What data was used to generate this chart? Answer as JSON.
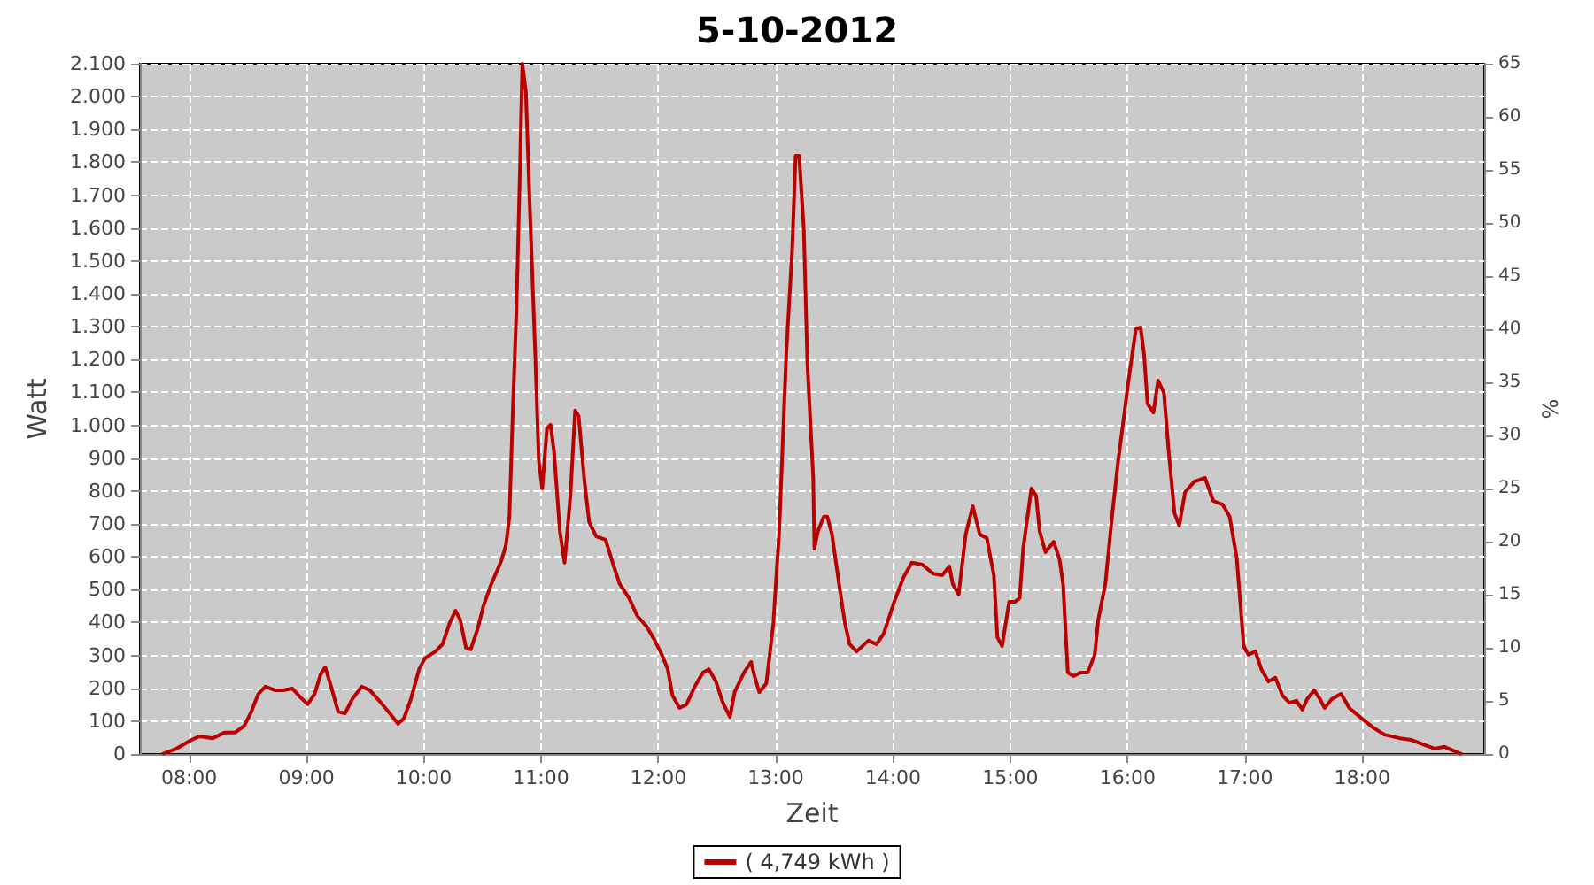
{
  "chart_data": {
    "type": "line",
    "title": "5-10-2012",
    "xlabel": "Zeit",
    "ylabel": "Watt",
    "y2label": "%",
    "x": [
      7.77,
      7.89,
      8.02,
      8.09,
      8.2,
      8.3,
      8.39,
      8.47,
      8.53,
      8.59,
      8.65,
      8.73,
      8.8,
      8.88,
      8.95,
      9.01,
      9.07,
      9.12,
      9.16,
      9.21,
      9.27,
      9.33,
      9.39,
      9.47,
      9.54,
      9.62,
      9.71,
      9.78,
      9.83,
      9.89,
      9.96,
      10.01,
      10.1,
      10.16,
      10.22,
      10.27,
      10.31,
      10.36,
      10.4,
      10.46,
      10.51,
      10.57,
      10.66,
      10.7,
      10.73,
      10.76,
      10.79,
      10.82,
      10.84,
      10.87,
      10.9,
      10.95,
      10.98,
      11.01,
      11.05,
      11.08,
      11.11,
      11.16,
      11.2,
      11.25,
      11.29,
      11.32,
      11.37,
      11.41,
      11.47,
      11.55,
      11.61,
      11.67,
      11.75,
      11.82,
      11.9,
      11.97,
      12.03,
      12.08,
      12.12,
      12.18,
      12.24,
      12.31,
      12.38,
      12.43,
      12.49,
      12.55,
      12.61,
      12.65,
      12.73,
      12.79,
      12.82,
      12.86,
      12.92,
      12.98,
      13.03,
      13.09,
      13.14,
      13.17,
      13.2,
      13.24,
      13.27,
      13.32,
      13.33,
      13.36,
      13.41,
      13.44,
      13.48,
      13.54,
      13.59,
      13.63,
      13.69,
      13.79,
      13.86,
      13.92,
      14.01,
      14.09,
      14.16,
      14.25,
      14.34,
      14.42,
      14.48,
      14.51,
      14.56,
      14.62,
      14.68,
      14.74,
      14.8,
      14.86,
      14.89,
      14.93,
      14.99,
      15.04,
      15.08,
      15.11,
      15.18,
      15.22,
      15.25,
      15.3,
      15.37,
      15.42,
      15.45,
      15.49,
      15.54,
      15.6,
      15.66,
      15.72,
      15.75,
      15.81,
      15.87,
      15.92,
      15.96,
      16.01,
      16.07,
      16.11,
      16.14,
      16.17,
      16.22,
      16.26,
      16.31,
      16.35,
      16.4,
      16.44,
      16.49,
      16.57,
      16.66,
      16.73,
      16.81,
      16.87,
      16.93,
      16.99,
      17.03,
      17.09,
      17.14,
      17.2,
      17.26,
      17.32,
      17.38,
      17.44,
      17.49,
      17.53,
      17.59,
      17.64,
      17.68,
      17.74,
      17.82,
      17.89,
      17.98,
      18.09,
      18.19,
      18.32,
      18.42,
      18.5,
      18.62,
      18.7,
      18.77,
      18.85
    ],
    "series": [
      {
        "name": "( 4,749 kWh )",
        "color": "#bb0000",
        "values": [
          0,
          16,
          43,
          54,
          48,
          65,
          65,
          86,
          129,
          183,
          205,
          194,
          194,
          199,
          172,
          151,
          183,
          242,
          264,
          205,
          129,
          124,
          167,
          205,
          194,
          162,
          124,
          92,
          108,
          167,
          258,
          291,
          312,
          334,
          398,
          436,
          409,
          323,
          318,
          382,
          452,
          512,
          587,
          635,
          722,
          1055,
          1352,
          1782,
          2100,
          2014,
          1702,
          1217,
          894,
          808,
          991,
          1002,
          921,
          678,
          582,
          786,
          1045,
          1028,
          829,
          705,
          662,
          652,
          582,
          517,
          474,
          420,
          388,
          345,
          302,
          258,
          178,
          140,
          151,
          205,
          248,
          258,
          221,
          156,
          113,
          188,
          248,
          280,
          237,
          188,
          215,
          398,
          678,
          1217,
          1529,
          1820,
          1820,
          1594,
          1190,
          840,
          625,
          678,
          722,
          722,
          668,
          517,
          398,
          334,
          312,
          345,
          334,
          366,
          463,
          538,
          582,
          576,
          549,
          544,
          571,
          517,
          485,
          668,
          754,
          668,
          657,
          544,
          355,
          328,
          463,
          463,
          474,
          625,
          808,
          786,
          678,
          614,
          646,
          592,
          517,
          248,
          237,
          248,
          248,
          302,
          409,
          517,
          732,
          894,
          1002,
          1142,
          1292,
          1298,
          1217,
          1066,
          1039,
          1136,
          1098,
          921,
          732,
          695,
          797,
          829,
          840,
          770,
          759,
          722,
          598,
          328,
          302,
          312,
          258,
          221,
          232,
          178,
          156,
          162,
          135,
          167,
          194,
          167,
          140,
          167,
          183,
          140,
          113,
          81,
          59,
          48,
          43,
          32,
          16,
          22,
          11,
          0
        ]
      }
    ],
    "xlim": [
      7.58,
      19.04
    ],
    "xticks": [
      {
        "value": 8,
        "label": "08:00"
      },
      {
        "value": 9,
        "label": "09:00"
      },
      {
        "value": 10,
        "label": "10:00"
      },
      {
        "value": 11,
        "label": "11:00"
      },
      {
        "value": 12,
        "label": "12:00"
      },
      {
        "value": 13,
        "label": "13:00"
      },
      {
        "value": 14,
        "label": "14:00"
      },
      {
        "value": 15,
        "label": "15:00"
      },
      {
        "value": 16,
        "label": "16:00"
      },
      {
        "value": 17,
        "label": "17:00"
      },
      {
        "value": 18,
        "label": "18:00"
      }
    ],
    "ylim": [
      0,
      2100
    ],
    "yticks": [
      0,
      100,
      200,
      300,
      400,
      500,
      600,
      700,
      800,
      900,
      {
        "value": 1000,
        "label": "1.000"
      },
      {
        "value": 1100,
        "label": "1.100"
      },
      {
        "value": 1200,
        "label": "1.200"
      },
      {
        "value": 1300,
        "label": "1.300"
      },
      {
        "value": 1400,
        "label": "1.400"
      },
      {
        "value": 1500,
        "label": "1.500"
      },
      {
        "value": 1600,
        "label": "1.600"
      },
      {
        "value": 1700,
        "label": "1.700"
      },
      {
        "value": 1800,
        "label": "1.800"
      },
      {
        "value": 1900,
        "label": "1.900"
      },
      {
        "value": 2000,
        "label": "2.000"
      },
      {
        "value": 2100,
        "label": "2.100"
      }
    ],
    "y2lim": [
      0,
      65
    ],
    "y2ticks": [
      0,
      5,
      10,
      15,
      20,
      25,
      30,
      35,
      40,
      45,
      50,
      55,
      60,
      65
    ],
    "grid": true,
    "legend": "bottom",
    "marker": "none",
    "line_style": "solid"
  }
}
